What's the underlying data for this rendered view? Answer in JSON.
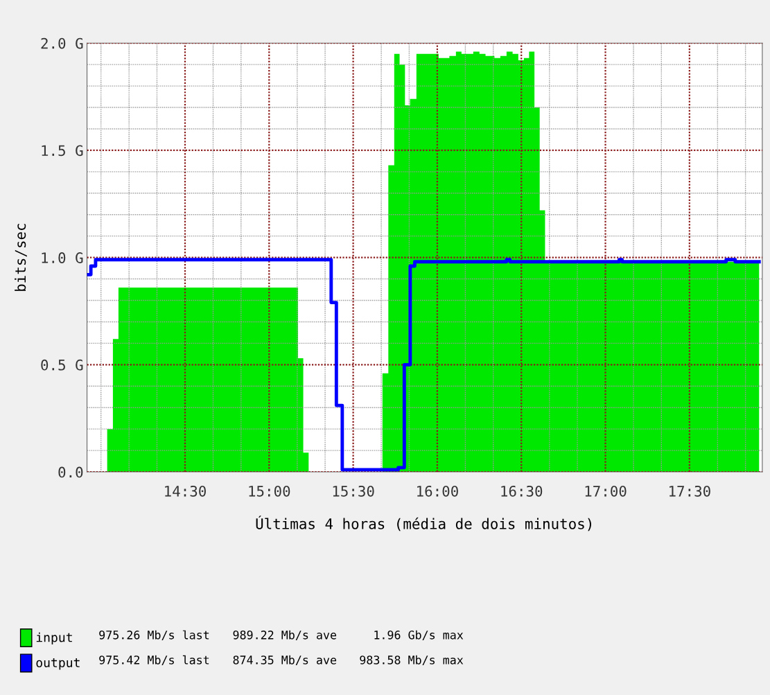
{
  "chart_data": {
    "type": "area",
    "xlabel": "Últimas 4 horas (média de dois minutos)",
    "ylabel": "bits/sec",
    "series": [
      {
        "name": "input",
        "type": "area",
        "color": "#00e800",
        "x": [
          14.037,
          14.071,
          14.104,
          15.172,
          15.203,
          15.235,
          15.674,
          15.709,
          15.744,
          15.776,
          15.808,
          15.838,
          15.876,
          16.008,
          16.072,
          16.111,
          16.144,
          16.214,
          16.251,
          16.287,
          16.34,
          16.375,
          16.412,
          16.448,
          16.482,
          16.515,
          16.546,
          16.578,
          16.609,
          16.641,
          17.914
        ],
        "values": [
          0.2,
          0.62,
          0.86,
          0.53,
          0.09,
          0,
          0.46,
          1.43,
          1.95,
          1.9,
          1.71,
          1.74,
          1.95,
          1.93,
          1.94,
          1.96,
          1.95,
          1.96,
          1.95,
          1.94,
          1.93,
          1.94,
          1.96,
          1.95,
          1.92,
          1.93,
          1.96,
          1.7,
          1.22,
          0.98,
          0.98
        ]
      },
      {
        "name": "output",
        "type": "step",
        "color": "#0000ff",
        "x": [
          13.925,
          13.94,
          13.968,
          15.369,
          15.4,
          15.435,
          15.768,
          15.804,
          15.839,
          15.866,
          16.412,
          16.432,
          17.082,
          17.099,
          17.718,
          17.772,
          17.914
        ],
        "values": [
          0.92,
          0.96,
          0.99,
          0.79,
          0.31,
          0.01,
          0.02,
          0.5,
          0.96,
          0.98,
          0.99,
          0.98,
          0.99,
          0.98,
          0.99,
          0.98,
          0.98
        ]
      }
    ],
    "xlim": [
      13.917,
      17.933
    ],
    "xticks": [
      {
        "value": 14.0,
        "label": null
      },
      {
        "value": 14.167,
        "label": null
      },
      {
        "value": 14.333,
        "label": null
      },
      {
        "value": 14.5,
        "label": "14:30"
      },
      {
        "value": 14.667,
        "label": null
      },
      {
        "value": 14.833,
        "label": null
      },
      {
        "value": 15.0,
        "label": "15:00"
      },
      {
        "value": 15.167,
        "label": null
      },
      {
        "value": 15.333,
        "label": null
      },
      {
        "value": 15.5,
        "label": "15:30"
      },
      {
        "value": 15.667,
        "label": null
      },
      {
        "value": 15.833,
        "label": null
      },
      {
        "value": 16.0,
        "label": "16:00"
      },
      {
        "value": 16.167,
        "label": null
      },
      {
        "value": 16.333,
        "label": null
      },
      {
        "value": 16.5,
        "label": "16:30"
      },
      {
        "value": 16.667,
        "label": null
      },
      {
        "value": 16.833,
        "label": null
      },
      {
        "value": 17.0,
        "label": "17:00"
      },
      {
        "value": 17.167,
        "label": null
      },
      {
        "value": 17.333,
        "label": null
      },
      {
        "value": 17.5,
        "label": "17:30"
      },
      {
        "value": 17.667,
        "label": null
      },
      {
        "value": 17.833,
        "label": null
      }
    ],
    "ylim": [
      0,
      2.0
    ],
    "yticks": [
      {
        "value": 0.0,
        "label": "0.0"
      },
      {
        "value": 0.1,
        "label": null
      },
      {
        "value": 0.2,
        "label": null
      },
      {
        "value": 0.3,
        "label": null
      },
      {
        "value": 0.4,
        "label": null
      },
      {
        "value": 0.5,
        "label": "0.5 G"
      },
      {
        "value": 0.6,
        "label": null
      },
      {
        "value": 0.7,
        "label": null
      },
      {
        "value": 0.8,
        "label": null
      },
      {
        "value": 0.9,
        "label": null
      },
      {
        "value": 1.0,
        "label": "1.0 G"
      },
      {
        "value": 1.1,
        "label": null
      },
      {
        "value": 1.2,
        "label": null
      },
      {
        "value": 1.3,
        "label": null
      },
      {
        "value": 1.4,
        "label": null
      },
      {
        "value": 1.5,
        "label": "1.5 G"
      },
      {
        "value": 1.6,
        "label": null
      },
      {
        "value": 1.7,
        "label": null
      },
      {
        "value": 1.8,
        "label": null
      },
      {
        "value": 1.9,
        "label": null
      },
      {
        "value": 2.0,
        "label": "2.0 G"
      }
    ],
    "grid": true,
    "legend": "bottom left",
    "annotations": [
      "975.26 Mb/s last",
      "989.22 Mb/s ave",
      "1.96 Gb/s max",
      "975.42 Mb/s last",
      "874.35 Mb/s ave",
      "983.58 Mb/s max"
    ]
  }
}
